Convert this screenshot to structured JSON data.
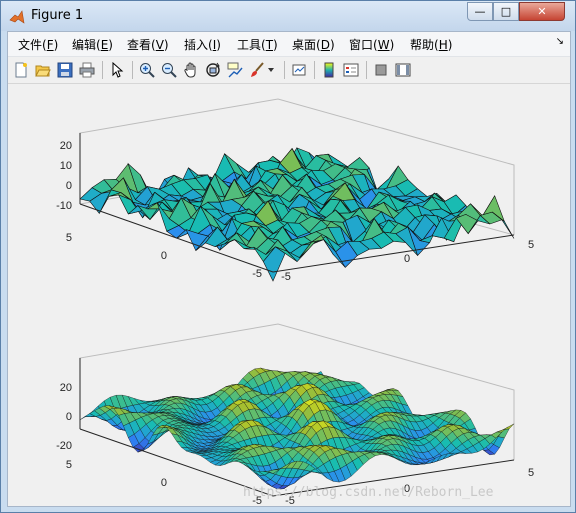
{
  "window": {
    "title": "Figure 1",
    "min_glyph": "—",
    "max_glyph": "□",
    "close_glyph": "✕"
  },
  "menu": {
    "items": [
      {
        "label": "文件(",
        "key": "F",
        "tail": ")"
      },
      {
        "label": "编辑(",
        "key": "E",
        "tail": ")"
      },
      {
        "label": "查看(",
        "key": "V",
        "tail": ")"
      },
      {
        "label": "插入(",
        "key": "I",
        "tail": ")"
      },
      {
        "label": "工具(",
        "key": "T",
        "tail": ")"
      },
      {
        "label": "桌面(",
        "key": "D",
        "tail": ")"
      },
      {
        "label": "窗口(",
        "key": "W",
        "tail": ")"
      },
      {
        "label": "帮助(",
        "key": "H",
        "tail": ")"
      }
    ],
    "overflow_glyph": "↘"
  },
  "toolbar": {
    "icons": [
      "new-figure-icon",
      "open-file-icon",
      "save-icon",
      "print-icon",
      "select-arrow-icon",
      "zoom-in-icon",
      "zoom-out-icon",
      "pan-hand-icon",
      "rotate-3d-icon",
      "data-cursor-icon",
      "brush-icon",
      "brush-dropdown-icon",
      "link-plot-icon",
      "colorbar-icon",
      "legend-icon",
      "hide-plot-tools-icon",
      "show-plot-tools-icon"
    ]
  },
  "chart_data": [
    {
      "type": "surface",
      "style": "faceted mesh, parula colormap",
      "z_ticks": [
        "20",
        "10",
        "0",
        "-10"
      ],
      "zlim": [
        -20,
        25
      ],
      "y_ticks": [
        "5",
        "0",
        "-5"
      ],
      "x_ticks": [
        "-5",
        "0",
        "5"
      ],
      "xlim": [
        -5,
        5
      ],
      "ylim": [
        -5,
        5
      ],
      "grid": true
    },
    {
      "type": "surface",
      "style": "interpolated mesh, parula colormap",
      "z_ticks": [
        "20",
        "0",
        "-20"
      ],
      "zlim": [
        -25,
        30
      ],
      "y_ticks": [
        "5",
        "0",
        "-5"
      ],
      "x_ticks": [
        "-5",
        "0",
        "5"
      ],
      "xlim": [
        -5,
        5
      ],
      "ylim": [
        -5,
        5
      ],
      "grid": true
    }
  ],
  "watermark": "https://blog.csdn.net/Reborn_Lee",
  "colors": {
    "title_bar": "#c9dcef",
    "close": "#c64433",
    "figure_bg": "#f0f0f0"
  }
}
